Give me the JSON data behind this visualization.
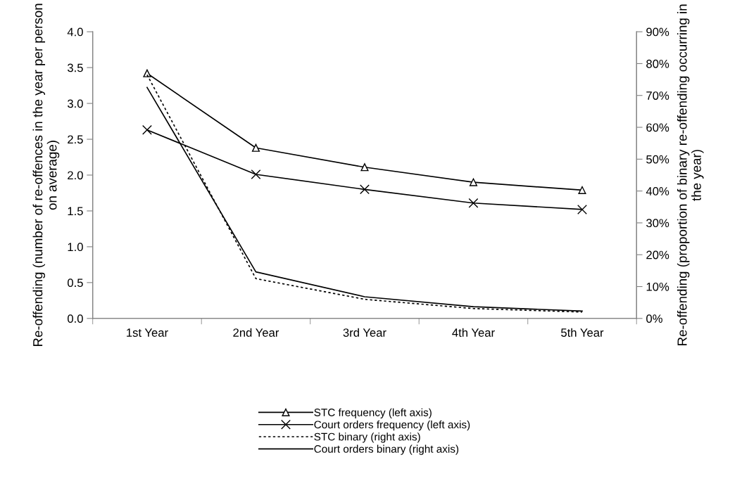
{
  "chart_data": {
    "type": "line",
    "categories": [
      "1st Year",
      "2nd Year",
      "3rd Year",
      "4th Year",
      "5th Year"
    ],
    "ylabel": "Re-offending (number of re-offences in the year per person on average)",
    "y2label": "Re-offending (proportion of binary re-offending occurring in the year)",
    "ylim": [
      0,
      4
    ],
    "yticks": [
      {
        "value": 0,
        "label": "0.0"
      },
      {
        "value": 0.5,
        "label": "0.5"
      },
      {
        "value": 1,
        "label": "1.0"
      },
      {
        "value": 1.5,
        "label": "1.5"
      },
      {
        "value": 2,
        "label": "2.0"
      },
      {
        "value": 2.5,
        "label": "2.5"
      },
      {
        "value": 3,
        "label": "3.0"
      },
      {
        "value": 3.5,
        "label": "3.5"
      },
      {
        "value": 4,
        "label": "4.0"
      }
    ],
    "y2lim": [
      0,
      90
    ],
    "y2ticks": [
      {
        "value": 0,
        "label": "0%"
      },
      {
        "value": 10,
        "label": "10%"
      },
      {
        "value": 20,
        "label": "20%"
      },
      {
        "value": 30,
        "label": "30%"
      },
      {
        "value": 40,
        "label": "40%"
      },
      {
        "value": 50,
        "label": "50%"
      },
      {
        "value": 60,
        "label": "60%"
      },
      {
        "value": 70,
        "label": "70%"
      },
      {
        "value": 80,
        "label": "80%"
      },
      {
        "value": 90,
        "label": "90%"
      }
    ],
    "grid": false,
    "legend": "bottom",
    "series": [
      {
        "name": "STC frequency (left axis)",
        "color": "#000000",
        "marker": "triangle",
        "line_style": "solid",
        "values": [
          3.42,
          2.38,
          2.11,
          1.9,
          1.79
        ]
      },
      {
        "name": "Court orders frequency (left axis)",
        "color": "#000000",
        "marker": "cross",
        "line_style": "solid",
        "values": [
          2.63,
          2.01,
          1.8,
          1.61,
          1.52
        ]
      },
      {
        "name": "STC binary (right axis)",
        "color": "#000000",
        "marker": "none",
        "line_style": "dotted",
        "axis": "y2",
        "values": [
          76.5,
          12.5,
          6.0,
          3.1,
          2.0
        ]
      },
      {
        "name": "Court orders binary (right axis)",
        "color": "#000000",
        "marker": "none",
        "line_style": "solid",
        "axis": "y2",
        "values": [
          72.5,
          14.6,
          6.8,
          3.7,
          2.3
        ]
      }
    ]
  }
}
